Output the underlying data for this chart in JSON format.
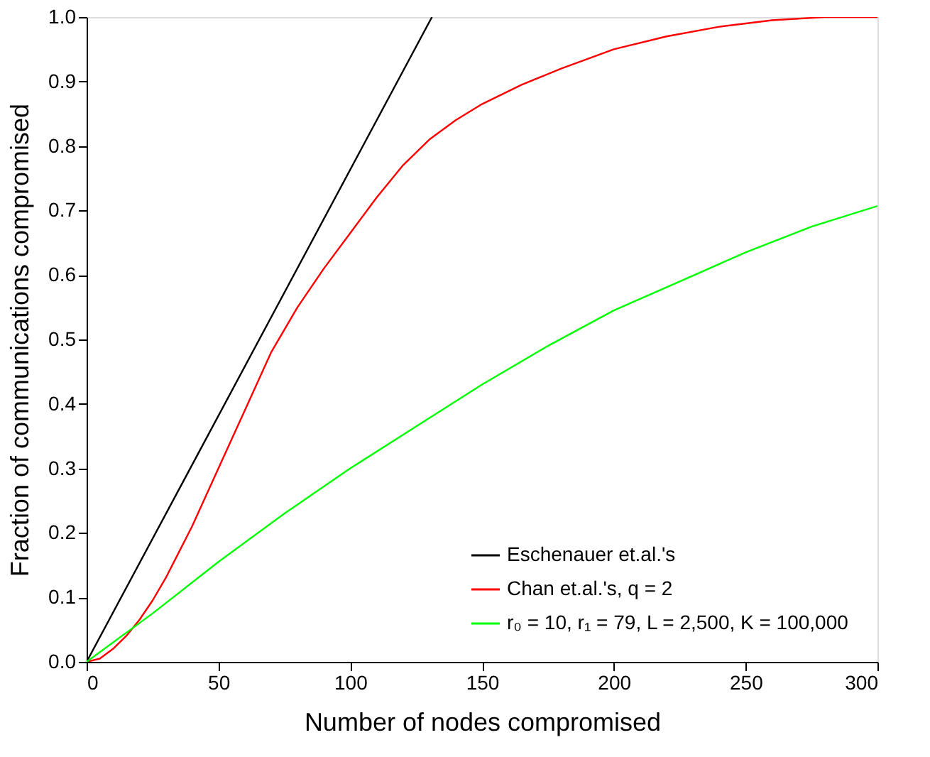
{
  "chart_data": {
    "type": "line",
    "xlabel": "Number of nodes compromised",
    "ylabel": "Fraction of communications compromised",
    "xlim": [
      0,
      300
    ],
    "ylim": [
      0,
      1.0
    ],
    "xticks": [
      0,
      50,
      100,
      150,
      200,
      250,
      300
    ],
    "yticks": [
      {
        "value": 0,
        "label": "0.0"
      },
      0.1,
      0.2,
      0.3,
      0.4,
      0.5,
      0.6,
      0.7,
      0.8,
      0.9,
      {
        "value": 1,
        "label": "1.0"
      }
    ],
    "grid": false,
    "legend": "bottom right",
    "marker": "none",
    "line_style": "solid",
    "series": [
      {
        "name": "Eschenauer et.al.'s",
        "color": "#000000",
        "x": [
          0,
          131
        ],
        "values": [
          0,
          1.0
        ]
      },
      {
        "name": "Chan et.al.'s, q = 2",
        "color": "#ff0000",
        "x": [
          0,
          5,
          10,
          15,
          20,
          25,
          30,
          40,
          50,
          60,
          70,
          80,
          90,
          100,
          110,
          120,
          130,
          140,
          150,
          165,
          180,
          200,
          220,
          240,
          260,
          280,
          300
        ],
        "values": [
          0,
          0.005,
          0.02,
          0.04,
          0.065,
          0.095,
          0.13,
          0.21,
          0.3,
          0.39,
          0.48,
          0.55,
          0.61,
          0.665,
          0.72,
          0.77,
          0.81,
          0.84,
          0.865,
          0.895,
          0.92,
          0.95,
          0.97,
          0.985,
          0.995,
          1.0,
          1.0
        ]
      },
      {
        "name": "r₀ = 10, r₁ = 79, L = 2,500, K = 100,000",
        "color": "#00ff00",
        "x": [
          0,
          25,
          50,
          75,
          100,
          125,
          150,
          175,
          200,
          225,
          250,
          275,
          300
        ],
        "values": [
          0,
          0.075,
          0.155,
          0.23,
          0.3,
          0.365,
          0.43,
          0.49,
          0.545,
          0.59,
          0.635,
          0.675,
          0.707
        ]
      }
    ]
  }
}
